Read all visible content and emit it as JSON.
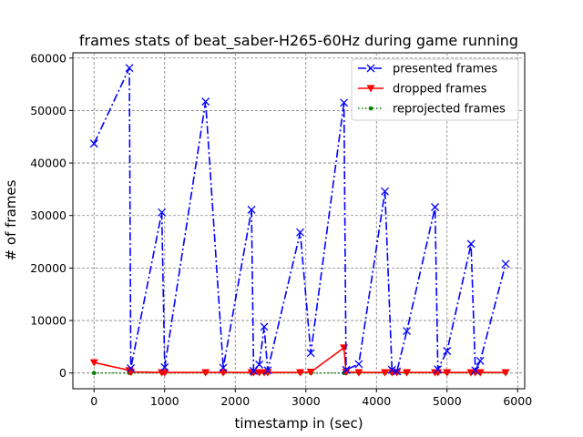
{
  "chart_data": {
    "type": "line",
    "title": "frames stats of beat_saber-H265-60Hz during game running",
    "xlabel": "timestamp in (sec)",
    "ylabel": "# of frames",
    "xlim": [
      -300,
      6100
    ],
    "ylim": [
      -3000,
      61000
    ],
    "xticks": [
      0,
      1000,
      2000,
      3000,
      4000,
      5000,
      6000
    ],
    "yticks": [
      0,
      10000,
      20000,
      30000,
      40000,
      50000,
      60000
    ],
    "grid": true,
    "legend_position": "top-right",
    "series": [
      {
        "name": "presented frames",
        "color": "#0000ff",
        "line_style": "dashdot",
        "marker": "x",
        "x": [
          0,
          500,
          520,
          960,
          1000,
          1580,
          1830,
          2230,
          2260,
          2340,
          2410,
          2460,
          2920,
          3070,
          3540,
          3570,
          3750,
          4120,
          4220,
          4290,
          4430,
          4830,
          4870,
          5000,
          5340,
          5400,
          5470,
          5830
        ],
        "y": [
          43700,
          58100,
          900,
          30600,
          1100,
          51700,
          1000,
          31100,
          400,
          1600,
          8800,
          500,
          26800,
          3800,
          51500,
          600,
          1700,
          34600,
          600,
          300,
          8000,
          31600,
          700,
          4200,
          24600,
          500,
          2300,
          20800
        ]
      },
      {
        "name": "dropped frames",
        "color": "#ff0000",
        "line_style": "solid",
        "marker": "triangle-down",
        "x": [
          0,
          500,
          520,
          960,
          1000,
          1580,
          1830,
          2230,
          2260,
          2340,
          2410,
          2460,
          2920,
          3070,
          3540,
          3570,
          3750,
          4120,
          4220,
          4290,
          4430,
          4830,
          4870,
          5000,
          5340,
          5400,
          5470,
          5830
        ],
        "y": [
          2000,
          500,
          200,
          100,
          100,
          100,
          100,
          100,
          100,
          100,
          100,
          100,
          100,
          200,
          4800,
          200,
          100,
          100,
          100,
          100,
          100,
          100,
          100,
          100,
          100,
          100,
          100,
          100
        ]
      },
      {
        "name": "reprojected frames",
        "color": "#008000",
        "line_style": "dotted",
        "marker": "dot",
        "x": [
          0,
          500,
          520,
          960,
          1000,
          1580,
          1830,
          2230,
          2260,
          2340,
          2410,
          2460,
          2920,
          3070,
          3540,
          3570,
          3750,
          4120,
          4220,
          4290,
          4430,
          4830,
          4870,
          5000,
          5340,
          5400,
          5470,
          5830
        ],
        "y": [
          0,
          0,
          0,
          0,
          0,
          0,
          0,
          0,
          0,
          0,
          0,
          0,
          0,
          0,
          0,
          0,
          0,
          0,
          0,
          0,
          0,
          0,
          0,
          0,
          0,
          0,
          0,
          0
        ]
      }
    ]
  }
}
